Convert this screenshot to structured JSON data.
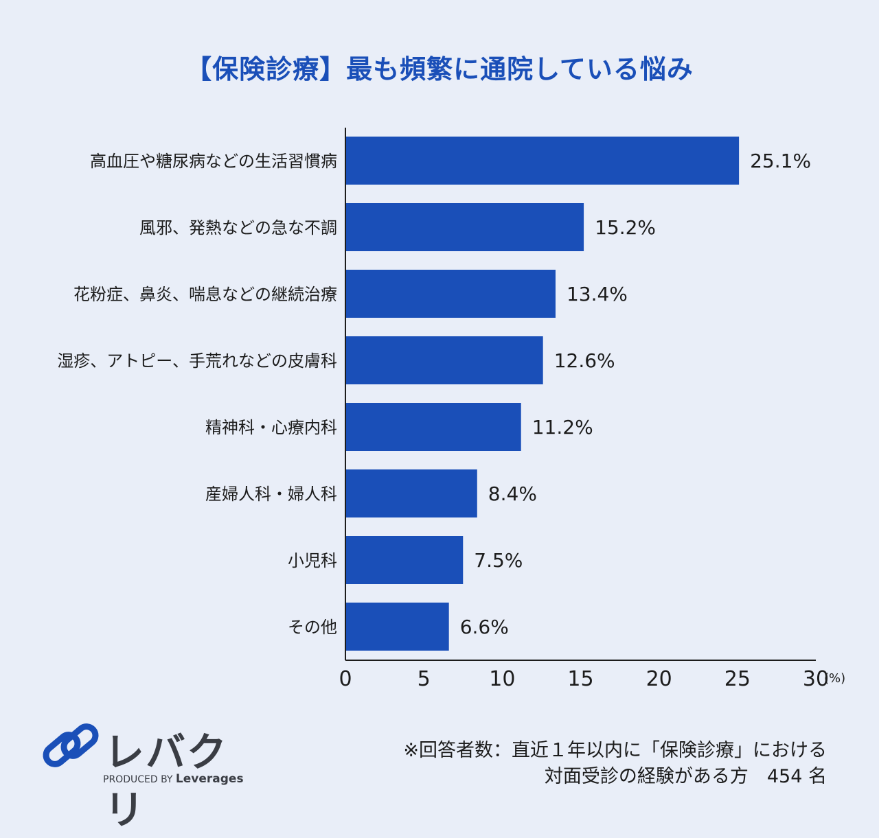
{
  "title": "【保険診療】最も頻繁に通院している悩み",
  "chart_data": {
    "type": "bar",
    "orientation": "horizontal",
    "categories": [
      "高血圧や糖尿病などの生活習慣病",
      "風邪、発熱などの急な不調",
      "花粉症、鼻炎、喘息などの継続治療",
      "湿疹、アトピー、手荒れなどの皮膚科",
      "精神科・心療内科",
      "産婦人科・婦人科",
      "小児科",
      "その他"
    ],
    "values": [
      25.1,
      15.2,
      13.4,
      12.6,
      11.2,
      8.4,
      7.5,
      6.6
    ],
    "value_labels": [
      "25.1%",
      "15.2%",
      "13.4%",
      "12.6%",
      "11.2%",
      "8.4%",
      "7.5%",
      "6.6%"
    ],
    "xlim": [
      0,
      30
    ],
    "xticks": [
      "0",
      "5",
      "10",
      "15",
      "20",
      "25",
      "30"
    ],
    "xunit": "(%)",
    "bar_color": "#1a4fb8",
    "grid": false
  },
  "logo": {
    "name": "レバクリ",
    "produced_by": "PRODUCED BY",
    "company": "Leverages",
    "icon": "chain-link-icon",
    "color": "#1a4fb8"
  },
  "footnote": {
    "line1": "※回答者数：直近１年以内に「保険診療」における",
    "line2": "対面受診の経験がある方　454 名"
  }
}
